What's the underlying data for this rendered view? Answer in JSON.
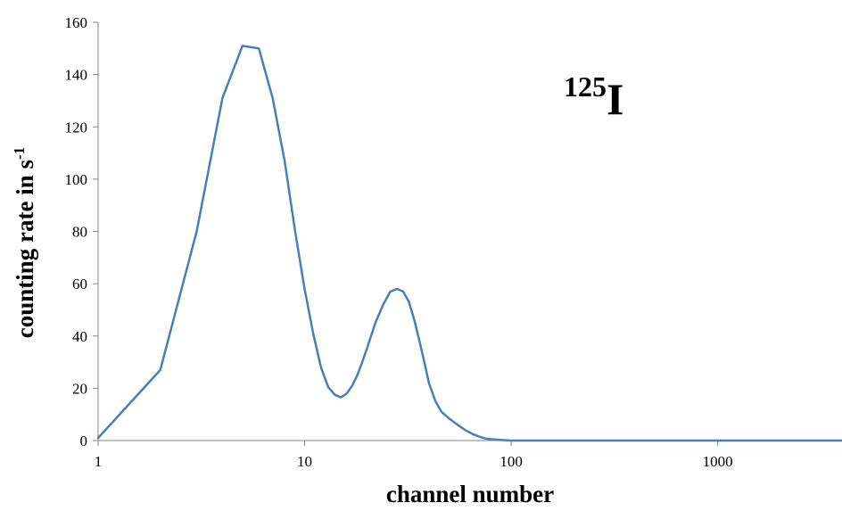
{
  "chart_data": {
    "type": "line",
    "title": "",
    "xlabel": "channel number",
    "ylabel": "counting rate in s",
    "ylabel_superscript": "-1",
    "annotation": {
      "superscript": "125",
      "text": "I"
    },
    "x_scale": "log",
    "xlim": [
      1,
      4000
    ],
    "ylim": [
      0,
      160
    ],
    "x_ticks": [
      1,
      10,
      100,
      1000
    ],
    "x_tick_labels": [
      "1",
      "10",
      "100",
      "1000"
    ],
    "y_ticks": [
      0,
      20,
      40,
      60,
      80,
      100,
      120,
      140,
      160
    ],
    "y_tick_labels": [
      "0",
      "20",
      "40",
      "60",
      "80",
      "100",
      "120",
      "140",
      "160"
    ],
    "grid": false,
    "legend": "none",
    "series": [
      {
        "color": "#4a7ebb",
        "x": [
          1,
          2,
          3,
          4,
          5,
          6,
          7,
          8,
          9,
          10,
          11,
          12,
          13,
          14,
          15,
          16,
          17,
          18,
          19,
          20,
          22,
          24,
          26,
          28,
          30,
          32,
          34,
          36,
          38,
          40,
          43,
          46,
          50,
          55,
          60,
          65,
          70,
          75,
          80,
          90,
          100,
          150,
          200,
          300,
          500,
          1000,
          2000,
          4000
        ],
        "y": [
          1,
          27,
          80,
          131,
          151,
          150,
          131,
          107,
          80,
          58,
          41,
          28,
          20.5,
          17.5,
          16.5,
          18,
          21,
          25,
          30,
          35,
          45,
          52,
          57,
          58,
          57,
          53,
          46,
          38,
          30,
          22,
          15,
          11,
          8.5,
          6,
          4,
          2.5,
          1.5,
          0.8,
          0.5,
          0.2,
          0,
          0,
          0,
          0,
          0,
          0,
          0,
          0
        ]
      }
    ]
  }
}
